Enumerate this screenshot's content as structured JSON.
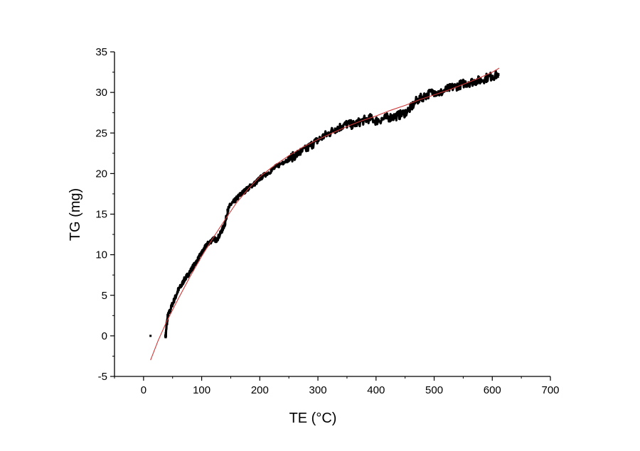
{
  "chart_data": {
    "type": "scatter",
    "title": "",
    "xlabel": "TE (°C)",
    "ylabel": "TG (mg)",
    "xlim": [
      -50,
      700
    ],
    "ylim": [
      -5,
      35
    ],
    "x_ticks": [
      0,
      100,
      200,
      300,
      400,
      500,
      600,
      700
    ],
    "y_ticks": [
      -5,
      0,
      5,
      10,
      15,
      20,
      25,
      30,
      35
    ],
    "grid": false,
    "legend": "none",
    "series": [
      {
        "kind": "measured",
        "color": "#000000",
        "points": [
          [
            12,
            0.0
          ],
          [
            38,
            0.0
          ],
          [
            40,
            1.5
          ],
          [
            42,
            2.5
          ],
          [
            45,
            3.0
          ],
          [
            50,
            4.0
          ],
          [
            55,
            4.8
          ],
          [
            60,
            5.7
          ],
          [
            65,
            6.2
          ],
          [
            70,
            6.9
          ],
          [
            75,
            7.4
          ],
          [
            80,
            7.9
          ],
          [
            85,
            8.5
          ],
          [
            90,
            9.0
          ],
          [
            95,
            9.6
          ],
          [
            100,
            10.2
          ],
          [
            105,
            10.8
          ],
          [
            110,
            11.3
          ],
          [
            115,
            11.6
          ],
          [
            120,
            12.0
          ],
          [
            125,
            11.8
          ],
          [
            130,
            12.3
          ],
          [
            135,
            13.0
          ],
          [
            140,
            13.8
          ],
          [
            145,
            15.5
          ],
          [
            150,
            16.2
          ],
          [
            155,
            16.5
          ],
          [
            160,
            16.9
          ],
          [
            165,
            17.3
          ],
          [
            170,
            17.6
          ],
          [
            175,
            17.9
          ],
          [
            180,
            18.2
          ],
          [
            185,
            18.5
          ],
          [
            190,
            18.7
          ],
          [
            195,
            19.0
          ],
          [
            200,
            19.4
          ],
          [
            210,
            19.9
          ],
          [
            220,
            20.4
          ],
          [
            230,
            20.9
          ],
          [
            240,
            21.4
          ],
          [
            250,
            21.8
          ],
          [
            260,
            22.2
          ],
          [
            270,
            22.6
          ],
          [
            280,
            23.0
          ],
          [
            290,
            23.6
          ],
          [
            300,
            24.1
          ],
          [
            310,
            24.6
          ],
          [
            320,
            25.0
          ],
          [
            330,
            25.5
          ],
          [
            340,
            25.8
          ],
          [
            350,
            26.1
          ],
          [
            360,
            26.0
          ],
          [
            370,
            26.3
          ],
          [
            380,
            26.6
          ],
          [
            390,
            26.8
          ],
          [
            400,
            26.5
          ],
          [
            410,
            26.7
          ],
          [
            420,
            26.9
          ],
          [
            430,
            27.0
          ],
          [
            440,
            27.2
          ],
          [
            450,
            27.5
          ],
          [
            460,
            28.1
          ],
          [
            470,
            29.0
          ],
          [
            480,
            29.4
          ],
          [
            490,
            29.8
          ],
          [
            500,
            30.1
          ],
          [
            510,
            29.9
          ],
          [
            520,
            30.3
          ],
          [
            530,
            30.6
          ],
          [
            540,
            30.8
          ],
          [
            550,
            31.1
          ],
          [
            560,
            31.2
          ],
          [
            570,
            31.4
          ],
          [
            580,
            31.5
          ],
          [
            590,
            31.8
          ],
          [
            600,
            32.0
          ],
          [
            610,
            32.2
          ]
        ]
      },
      {
        "kind": "fit",
        "color": "#d03a3a",
        "points": [
          [
            12,
            -3.0
          ],
          [
            25,
            -0.6
          ],
          [
            40,
            1.8
          ],
          [
            60,
            4.6
          ],
          [
            80,
            7.3
          ],
          [
            100,
            9.8
          ],
          [
            120,
            12.1
          ],
          [
            140,
            14.3
          ],
          [
            160,
            16.4
          ],
          [
            180,
            18.1
          ],
          [
            200,
            19.6
          ],
          [
            225,
            21.0
          ],
          [
            250,
            22.2
          ],
          [
            275,
            23.3
          ],
          [
            300,
            24.2
          ],
          [
            325,
            25.0
          ],
          [
            350,
            25.8
          ],
          [
            375,
            26.5
          ],
          [
            400,
            27.1
          ],
          [
            425,
            27.8
          ],
          [
            450,
            28.4
          ],
          [
            475,
            29.1
          ],
          [
            500,
            29.7
          ],
          [
            525,
            30.3
          ],
          [
            550,
            31.0
          ],
          [
            575,
            31.7
          ],
          [
            600,
            32.5
          ],
          [
            612,
            33.0
          ]
        ]
      }
    ]
  }
}
